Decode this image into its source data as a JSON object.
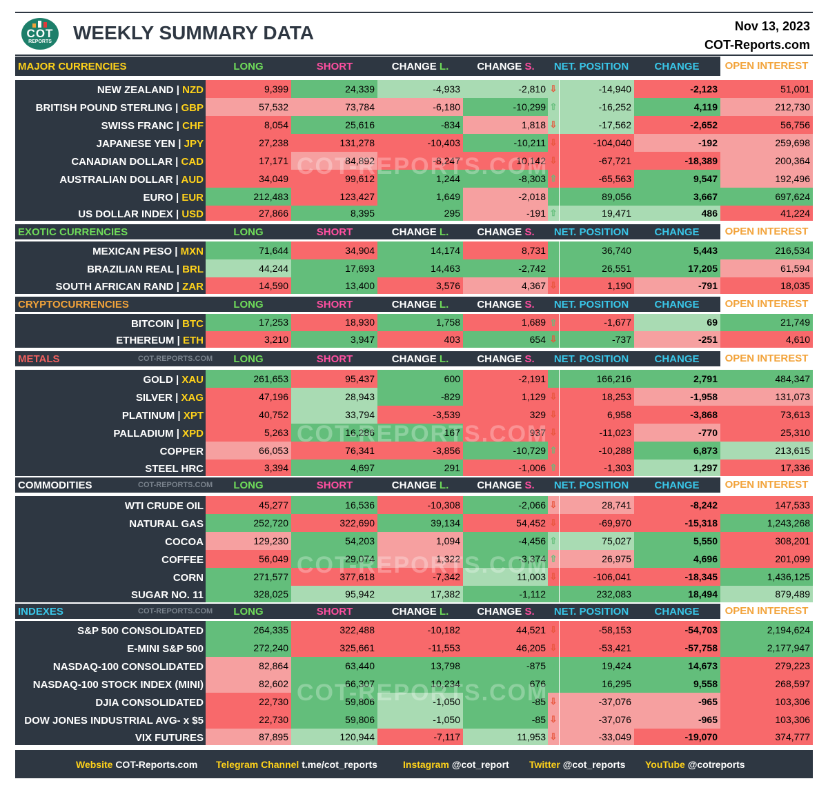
{
  "title": "WEEKLY SUMMARY DATA",
  "date": "Nov 13, 2023",
  "site": "COT-Reports.com",
  "logo": {
    "top": "COT",
    "bottom": "REPORTS"
  },
  "watermark": "COT-REPORTS.COM",
  "columns": {
    "long": "LONG",
    "short": "SHORT",
    "change_l": {
      "a": "CHANGE ",
      "b": "L."
    },
    "change_s": {
      "a": "CHANGE ",
      "b": "S."
    },
    "net": "NET. POSITION",
    "change": "CHANGE",
    "oi": "OPEN INTEREST"
  },
  "sections": [
    {
      "label": "MAJOR CURRENCIES",
      "label_color": "#ffd21a",
      "watermark_label": "",
      "rows": [
        {
          "name": "NEW ZEALAND | ",
          "code": "NZD",
          "long": "9,399",
          "short": "24,339",
          "chg_l": "-4,933",
          "chg_s": "-2,810",
          "dir": "down",
          "net": "-14,940",
          "change": "-2,123",
          "oi": "51,001"
        },
        {
          "name": "BRITISH POUND STERLING | ",
          "code": "GBP",
          "long": "57,532",
          "short": "73,784",
          "chg_l": "-6,180",
          "chg_s": "-10,299",
          "dir": "up",
          "net": "-16,252",
          "change": "4,119",
          "oi": "212,730"
        },
        {
          "name": "SWISS FRANC | ",
          "code": "CHF",
          "long": "8,054",
          "short": "25,616",
          "chg_l": "-834",
          "chg_s": "1,818",
          "dir": "down",
          "net": "-17,562",
          "change": "-2,652",
          "oi": "56,756"
        },
        {
          "name": "JAPANESE YEN | ",
          "code": "JPY",
          "long": "27,238",
          "short": "131,278",
          "chg_l": "-10,403",
          "chg_s": "-10,211",
          "dir": "down",
          "net": "-104,040",
          "change": "-192",
          "oi": "259,698"
        },
        {
          "name": "CANADIAN DOLLAR | ",
          "code": "CAD",
          "long": "17,171",
          "short": "84,892",
          "chg_l": "-8,247",
          "chg_s": "10,142",
          "dir": "down",
          "net": "-67,721",
          "change": "-18,389",
          "oi": "200,364"
        },
        {
          "name": "AUSTRALIAN DOLLAR | ",
          "code": "AUD",
          "long": "34,049",
          "short": "99,612",
          "chg_l": "1,244",
          "chg_s": "-8,303",
          "dir": "up",
          "net": "-65,563",
          "change": "9,547",
          "oi": "192,496"
        },
        {
          "name": "EURO | ",
          "code": "EUR",
          "long": "212,483",
          "short": "123,427",
          "chg_l": "1,649",
          "chg_s": "-2,018",
          "dir": "up",
          "net": "89,056",
          "change": "3,667",
          "oi": "697,624"
        },
        {
          "name": "US DOLLAR INDEX | ",
          "code": "USD",
          "long": "27,866",
          "short": "8,395",
          "chg_l": "295",
          "chg_s": "-191",
          "dir": "up",
          "net": "19,471",
          "change": "486",
          "oi": "41,224"
        }
      ]
    },
    {
      "label": "EXOTIC CURRENCIES",
      "label_color": "#6fdc5a",
      "watermark_label": "",
      "rows": [
        {
          "name": "MEXICAN PESO | ",
          "code": "MXN",
          "long": "71,644",
          "short": "34,904",
          "chg_l": "14,174",
          "chg_s": "8,731",
          "dir": "up",
          "net": "36,740",
          "change": "5,443",
          "oi": "216,534"
        },
        {
          "name": "BRAZILIAN REAL | ",
          "code": "BRL",
          "long": "44,244",
          "short": "17,693",
          "chg_l": "14,463",
          "chg_s": "-2,742",
          "dir": "up",
          "net": "26,551",
          "change": "17,205",
          "oi": "61,594"
        },
        {
          "name": "SOUTH AFRICAN RAND | ",
          "code": "ZAR",
          "long": "14,590",
          "short": "13,400",
          "chg_l": "3,576",
          "chg_s": "4,367",
          "dir": "down",
          "net": "1,190",
          "change": "-791",
          "oi": "18,035"
        }
      ]
    },
    {
      "label": "CRYPTOCURRENCIES",
      "label_color": "#f2a33a",
      "watermark_label": "",
      "rows": [
        {
          "name": "BITCOIN | ",
          "code": "BTC",
          "long": "17,253",
          "short": "18,930",
          "chg_l": "1,758",
          "chg_s": "1,689",
          "dir": "up",
          "net": "-1,677",
          "change": "69",
          "oi": "21,749"
        },
        {
          "name": "ETHEREUM | ",
          "code": "ETH",
          "long": "3,210",
          "short": "3,947",
          "chg_l": "403",
          "chg_s": "654",
          "dir": "down",
          "net": "-737",
          "change": "-251",
          "oi": "4,610"
        }
      ]
    },
    {
      "label": "METALS",
      "label_color": "#f0605f",
      "watermark_label": "COT-REPORTS.COM",
      "rows": [
        {
          "name": "GOLD | ",
          "code": "XAU",
          "long": "261,653",
          "short": "95,437",
          "chg_l": "600",
          "chg_s": "-2,191",
          "dir": "up",
          "net": "166,216",
          "change": "2,791",
          "oi": "484,347"
        },
        {
          "name": "SILVER | ",
          "code": "XAG",
          "long": "47,196",
          "short": "28,943",
          "chg_l": "-829",
          "chg_s": "1,129",
          "dir": "down",
          "net": "18,253",
          "change": "-1,958",
          "oi": "131,073"
        },
        {
          "name": "PLATINUM | ",
          "code": "XPT",
          "long": "40,752",
          "short": "33,794",
          "chg_l": "-3,539",
          "chg_s": "329",
          "dir": "down",
          "net": "6,958",
          "change": "-3,868",
          "oi": "73,613"
        },
        {
          "name": "PALLADIUM | ",
          "code": "XPD",
          "long": "5,263",
          "short": "16,286",
          "chg_l": "167",
          "chg_s": "937",
          "dir": "down",
          "net": "-11,023",
          "change": "-770",
          "oi": "25,310"
        },
        {
          "name": "COPPER",
          "code": "",
          "long": "66,053",
          "short": "76,341",
          "chg_l": "-3,856",
          "chg_s": "-10,729",
          "dir": "up",
          "net": "-10,288",
          "change": "6,873",
          "oi": "213,615"
        },
        {
          "name": "STEEL HRC",
          "code": "",
          "long": "3,394",
          "short": "4,697",
          "chg_l": "291",
          "chg_s": "-1,006",
          "dir": "up",
          "net": "-1,303",
          "change": "1,297",
          "oi": "17,336"
        }
      ]
    },
    {
      "label": "COMMODITIES",
      "label_color": "#ffffff",
      "watermark_label": "COT-REPORTS.COM",
      "rows": [
        {
          "name": "WTI CRUDE OIL",
          "code": "",
          "long": "45,277",
          "short": "16,536",
          "chg_l": "-10,308",
          "chg_s": "-2,066",
          "dir": "down",
          "net": "28,741",
          "change": "-8,242",
          "oi": "147,533"
        },
        {
          "name": "NATURAL GAS",
          "code": "",
          "long": "252,720",
          "short": "322,690",
          "chg_l": "39,134",
          "chg_s": "54,452",
          "dir": "down",
          "net": "-69,970",
          "change": "-15,318",
          "oi": "1,243,268"
        },
        {
          "name": "COCOA",
          "code": "",
          "long": "129,230",
          "short": "54,203",
          "chg_l": "1,094",
          "chg_s": "-4,456",
          "dir": "up",
          "net": "75,027",
          "change": "5,550",
          "oi": "308,201"
        },
        {
          "name": "COFFEE",
          "code": "",
          "long": "56,049",
          "short": "29,074",
          "chg_l": "1,322",
          "chg_s": "-3,374",
          "dir": "up",
          "net": "26,975",
          "change": "4,696",
          "oi": "201,099"
        },
        {
          "name": "CORN",
          "code": "",
          "long": "271,577",
          "short": "377,618",
          "chg_l": "-7,342",
          "chg_s": "11,003",
          "dir": "down",
          "net": "-106,041",
          "change": "-18,345",
          "oi": "1,436,125"
        },
        {
          "name": "SUGAR NO. 11",
          "code": "",
          "long": "328,025",
          "short": "95,942",
          "chg_l": "17,382",
          "chg_s": "-1,112",
          "dir": "up",
          "net": "232,083",
          "change": "18,494",
          "oi": "879,489"
        }
      ]
    },
    {
      "label": "INDEXES",
      "label_color": "#39c6e8",
      "watermark_label": "COT-REPORTS.COM",
      "rows": [
        {
          "name": "S&P 500 CONSOLIDATED",
          "code": "",
          "long": "264,335",
          "short": "322,488",
          "chg_l": "-10,182",
          "chg_s": "44,521",
          "dir": "down",
          "net": "-58,153",
          "change": "-54,703",
          "oi": "2,194,624"
        },
        {
          "name": "E-MINI S&P 500",
          "code": "",
          "long": "272,240",
          "short": "325,661",
          "chg_l": "-11,553",
          "chg_s": "46,205",
          "dir": "down",
          "net": "-53,421",
          "change": "-57,758",
          "oi": "2,177,947"
        },
        {
          "name": "NASDAQ-100 CONSOLIDATED",
          "code": "",
          "long": "82,864",
          "short": "63,440",
          "chg_l": "13,798",
          "chg_s": "-875",
          "dir": "up",
          "net": "19,424",
          "change": "14,673",
          "oi": "279,223"
        },
        {
          "name": "NASDAQ-100 STOCK INDEX (MINI)",
          "code": "",
          "long": "82,602",
          "short": "66,307",
          "chg_l": "10,234",
          "chg_s": "676",
          "dir": "up",
          "net": "16,295",
          "change": "9,558",
          "oi": "268,597"
        },
        {
          "name": "DJIA CONSOLIDATED",
          "code": "",
          "long": "22,730",
          "short": "59,806",
          "chg_l": "-1,050",
          "chg_s": "-85",
          "dir": "down",
          "net": "-37,076",
          "change": "-965",
          "oi": "103,306"
        },
        {
          "name": "DOW JONES INDUSTRIAL AVG- x $5",
          "code": "",
          "long": "22,730",
          "short": "59,806",
          "chg_l": "-1,050",
          "chg_s": "-85",
          "dir": "down",
          "net": "-37,076",
          "change": "-965",
          "oi": "103,306"
        },
        {
          "name": "VIX FUTURES",
          "code": "",
          "long": "87,895",
          "short": "120,944",
          "chg_l": "-7,117",
          "chg_s": "11,953",
          "dir": "down",
          "net": "-33,049",
          "change": "-19,070",
          "oi": "374,777"
        }
      ]
    }
  ],
  "footer": [
    {
      "label": "Website ",
      "value": "COT-Reports.com"
    },
    {
      "label": "Telegram Channel ",
      "value": "t.me/cot_reports"
    },
    {
      "label": "Instagram ",
      "value": "@cot_report"
    },
    {
      "label": "Twitter ",
      "value": "@cot_reports"
    },
    {
      "label": "YouTube ",
      "value": "@cotreports"
    }
  ],
  "colors": {
    "panel": "#2e3742",
    "code": "#ffd21a",
    "long_header": "#6fdc5a",
    "short_header": "#ff4fa0",
    "net_header": "#39c6e8",
    "strong_green": "#63be7b",
    "light_green": "#a9dbb3",
    "strong_red": "#f8696b",
    "light_red": "#f6a0a0",
    "arrow_up": "#63be7b",
    "arrow_down": "#e8543a"
  }
}
